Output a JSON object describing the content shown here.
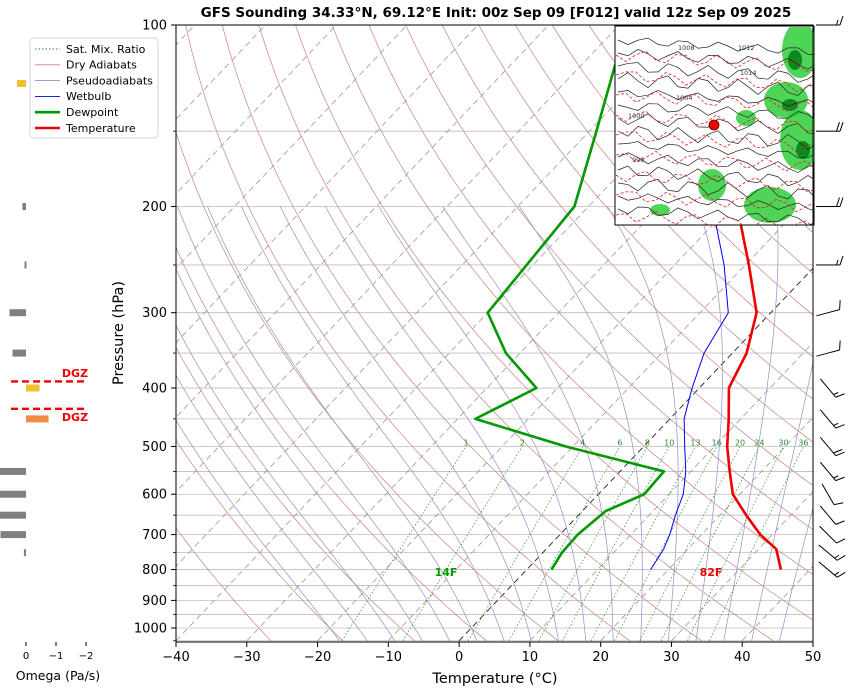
{
  "chart_data": {
    "type": "line",
    "title": "GFS Sounding 34.33°N, 69.12°E Init: 00z Sep 09 [F012] valid 12z Sep 09 2025",
    "xlabel": "Temperature (°C)",
    "ylabel": "Pressure (hPa)",
    "xlim": [
      -40,
      50
    ],
    "ylim": [
      1050,
      100
    ],
    "y_scale": "log",
    "skew": "skew-T",
    "grid": true,
    "x_ticks": [
      -40,
      -30,
      -20,
      -10,
      0,
      10,
      20,
      30,
      40,
      50
    ],
    "y_ticks": [
      100,
      200,
      300,
      400,
      500,
      600,
      700,
      800,
      900,
      1000
    ],
    "legend_position": "top-left",
    "legend": [
      {
        "name": "Sat. Mix. Ratio",
        "color": "#2e8b2e",
        "style": "dotted"
      },
      {
        "name": "Dry Adiabats",
        "color": "#d08080",
        "style": "solid"
      },
      {
        "name": "Pseudoadiabats",
        "color": "#9090d0",
        "style": "solid"
      },
      {
        "name": "Wetbulb",
        "color": "#0000ee",
        "style": "solid"
      },
      {
        "name": "Dewpoint",
        "color": "#009900",
        "style": "thick"
      },
      {
        "name": "Temperature",
        "color": "#ee0000",
        "style": "thick"
      }
    ],
    "series": [
      {
        "name": "Temperature",
        "color": "#ee0000",
        "points": [
          [
            800,
            35.9
          ],
          [
            740,
            32.5
          ],
          [
            700,
            28.3
          ],
          [
            650,
            23.7
          ],
          [
            600,
            19.0
          ],
          [
            550,
            15.5
          ],
          [
            500,
            11.8
          ],
          [
            450,
            8.3
          ],
          [
            400,
            4.2
          ],
          [
            350,
            2.0
          ],
          [
            300,
            -2.0
          ],
          [
            250,
            -9.5
          ],
          [
            200,
            -19.0
          ],
          [
            150,
            -29.0
          ],
          [
            125,
            -33.5
          ],
          [
            100,
            -40.0
          ]
        ]
      },
      {
        "name": "Dewpoint",
        "color": "#009900",
        "points": [
          [
            800,
            3.5
          ],
          [
            750,
            2.7
          ],
          [
            700,
            2.5
          ],
          [
            640,
            3.3
          ],
          [
            600,
            6.5
          ],
          [
            550,
            6.2
          ],
          [
            500,
            -11.0
          ],
          [
            450,
            -27.5
          ],
          [
            400,
            -23.0
          ],
          [
            350,
            -32.0
          ],
          [
            300,
            -40.0
          ],
          [
            200,
            -42.0
          ],
          [
            150,
            -49.0
          ],
          [
            100,
            -59.0
          ]
        ]
      },
      {
        "name": "Wetbulb",
        "color": "#0000ee",
        "points": [
          [
            800,
            17.5
          ],
          [
            740,
            16.6
          ],
          [
            700,
            15.5
          ],
          [
            650,
            13.7
          ],
          [
            600,
            12.0
          ],
          [
            550,
            9.3
          ],
          [
            500,
            5.8
          ],
          [
            450,
            2.0
          ],
          [
            400,
            -1.0
          ],
          [
            350,
            -4.0
          ],
          [
            300,
            -6.0
          ],
          [
            250,
            -13.0
          ],
          [
            200,
            -22.5
          ],
          [
            150,
            -31.0
          ],
          [
            125,
            -33.5
          ]
        ]
      }
    ],
    "mixing_ratio_labels": [
      "1",
      "2",
      "4",
      "6",
      "8",
      "10",
      "13",
      "16",
      "20",
      "24",
      "30",
      "36"
    ],
    "surface_labels": {
      "dewpoint": "14F",
      "temperature": "82F"
    },
    "omega_panel": {
      "xlabel": "Omega (Pa/s)",
      "ticks": [
        "0",
        "−1",
        "−2"
      ],
      "dgz_labels": [
        "DGZ",
        "DGZ"
      ],
      "bars": [
        {
          "p": 125,
          "omega": 0.3,
          "color": "#f2c12e"
        },
        {
          "p": 200,
          "omega": 0.12,
          "color": "#808080"
        },
        {
          "p": 250,
          "omega": 0.05,
          "color": "#808080"
        },
        {
          "p": 300,
          "omega": 0.55,
          "color": "#808080"
        },
        {
          "p": 350,
          "omega": 0.45,
          "color": "#808080"
        },
        {
          "p": 400,
          "omega": -0.45,
          "color": "#f2c12e"
        },
        {
          "p": 450,
          "omega": -0.75,
          "color": "#f08a40"
        },
        {
          "p": 550,
          "omega": 1.0,
          "color": "#808080"
        },
        {
          "p": 600,
          "omega": 1.0,
          "color": "#808080"
        },
        {
          "p": 650,
          "omega": 1.0,
          "color": "#808080"
        },
        {
          "p": 700,
          "omega": 0.85,
          "color": "#808080"
        },
        {
          "p": 750,
          "omega": 0.07,
          "color": "#808080"
        }
      ]
    },
    "wind_barbs": [
      {
        "p": 100,
        "spd": 15,
        "dir": 270
      },
      {
        "p": 150,
        "spd": 20,
        "dir": 270
      },
      {
        "p": 200,
        "spd": 20,
        "dir": 270
      },
      {
        "p": 250,
        "spd": 15,
        "dir": 270
      },
      {
        "p": 300,
        "spd": 10,
        "dir": 255
      },
      {
        "p": 350,
        "spd": 10,
        "dir": 255
      },
      {
        "p": 400,
        "spd": 15,
        "dir": 320
      },
      {
        "p": 450,
        "spd": 15,
        "dir": 320
      },
      {
        "p": 500,
        "spd": 20,
        "dir": 320
      },
      {
        "p": 550,
        "spd": 15,
        "dir": 320
      },
      {
        "p": 600,
        "spd": 10,
        "dir": 330
      },
      {
        "p": 650,
        "spd": 10,
        "dir": 320
      },
      {
        "p": 700,
        "spd": 10,
        "dir": 315
      },
      {
        "p": 750,
        "spd": 15,
        "dir": 310
      },
      {
        "p": 800,
        "spd": 15,
        "dir": 310
      }
    ],
    "inset_map": {
      "marker": "sounding-location",
      "label_samples": [
        "1008",
        "1004",
        "1000",
        "996",
        "1012",
        "1014"
      ]
    }
  },
  "colors": {
    "temperature": "#ee0000",
    "dewpoint": "#009900",
    "wetbulb": "#0000ee",
    "dry_adiabat": "#d08080",
    "pseudoadiabat": "#9090d0",
    "mixing_ratio": "#2e8b2e",
    "dgz": "#ee0000"
  }
}
